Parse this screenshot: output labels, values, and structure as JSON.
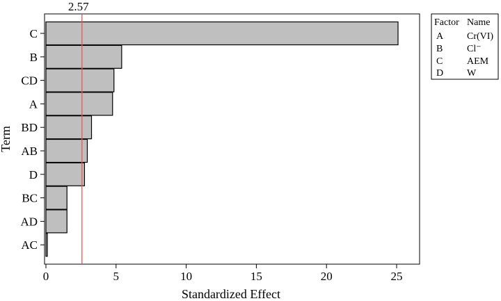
{
  "chart_data": {
    "type": "bar",
    "orientation": "horizontal",
    "title": "",
    "xlabel": "Standardized Effect",
    "ylabel": "Term",
    "categories": [
      "C",
      "B",
      "CD",
      "A",
      "BD",
      "AB",
      "D",
      "BC",
      "AD",
      "AC"
    ],
    "values": [
      25.1,
      5.4,
      4.85,
      4.75,
      3.25,
      2.95,
      2.75,
      1.5,
      1.5,
      0.1
    ],
    "xlim": [
      0,
      27.5
    ],
    "xticks": [
      0,
      5,
      10,
      15,
      20,
      25
    ],
    "reference_line": {
      "value": 2.57,
      "label": "2.57",
      "color": "#e8574f"
    },
    "bar_color": "#bfbfbf",
    "grid": false,
    "legend": {
      "placement": "top-right",
      "header": [
        "Factor",
        "Name"
      ],
      "rows": [
        [
          "A",
          "Cr(VI)"
        ],
        [
          "B",
          "Cl⁻"
        ],
        [
          "C",
          "AEM"
        ],
        [
          "D",
          "W"
        ]
      ]
    }
  }
}
